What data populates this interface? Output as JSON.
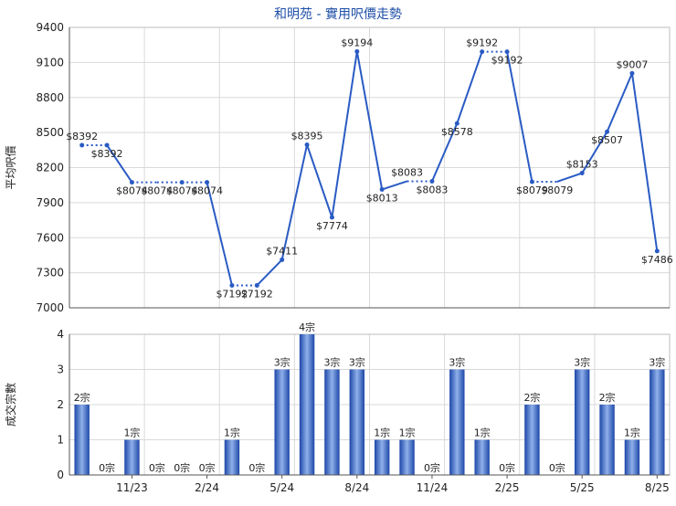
{
  "title": "和明苑 - 實用呎價走勢",
  "colors": {
    "line": "#2a5bc4",
    "bar_dark": "#1d47a8",
    "bar_light": "#8fb0ea",
    "grid": "#d9d9d9",
    "axis": "#555555",
    "text": "#222222",
    "title": "#1f4fa8"
  },
  "chart_data": [
    {
      "type": "line",
      "ylabel": "平均呎價",
      "ylim": [
        7000,
        9400
      ],
      "yticks": [
        7000,
        7300,
        7600,
        7900,
        8200,
        8500,
        8800,
        9100,
        9400
      ],
      "x_tick_labels": [
        "11/23",
        "2/24",
        "5/24",
        "8/24",
        "11/24",
        "2/25",
        "5/25",
        "8/25"
      ],
      "grid": true,
      "values": [
        8392,
        8392,
        8074,
        8074,
        8074,
        8074,
        7192,
        7192,
        7411,
        8395,
        7774,
        9194,
        8013,
        8083,
        8083,
        8578,
        9192,
        9192,
        8079,
        8079,
        8153,
        8507,
        9007,
        7486
      ],
      "labels": [
        "$8392",
        "$8392",
        "$8074",
        "$8074",
        "$8074",
        "$8074",
        "$7192",
        "$7192",
        "$7411",
        "$8395",
        "$7774",
        "$9194",
        "$8013",
        "$8083",
        "$8083",
        "$8578",
        "$9192",
        "$9192",
        "$8079",
        "$8079",
        "$8153",
        "$8507",
        "$9007",
        "$7486"
      ],
      "has_data": [
        true,
        true,
        true,
        false,
        true,
        true,
        true,
        true,
        true,
        true,
        true,
        true,
        true,
        false,
        true,
        true,
        true,
        true,
        true,
        false,
        true,
        true,
        true,
        true
      ]
    },
    {
      "type": "bar",
      "ylabel": "成交宗數",
      "ylim": [
        0,
        4
      ],
      "yticks": [
        0,
        1,
        2,
        3,
        4
      ],
      "x_tick_labels": [
        "11/23",
        "2/24",
        "5/24",
        "8/24",
        "11/24",
        "2/25",
        "5/25",
        "8/25"
      ],
      "grid": true,
      "values": [
        2,
        0,
        1,
        0,
        0,
        0,
        1,
        0,
        3,
        4,
        3,
        3,
        1,
        1,
        0,
        3,
        1,
        0,
        2,
        0,
        3,
        2,
        1,
        3
      ],
      "labels": [
        "2宗",
        "0宗",
        "1宗",
        "0宗",
        "0宗",
        "0宗",
        "1宗",
        "0宗",
        "3宗",
        "4宗",
        "3宗",
        "3宗",
        "1宗",
        "1宗",
        "0宗",
        "3宗",
        "1宗",
        "0宗",
        "2宗",
        "0宗",
        "3宗",
        "2宗",
        "1宗",
        "3宗"
      ]
    }
  ]
}
